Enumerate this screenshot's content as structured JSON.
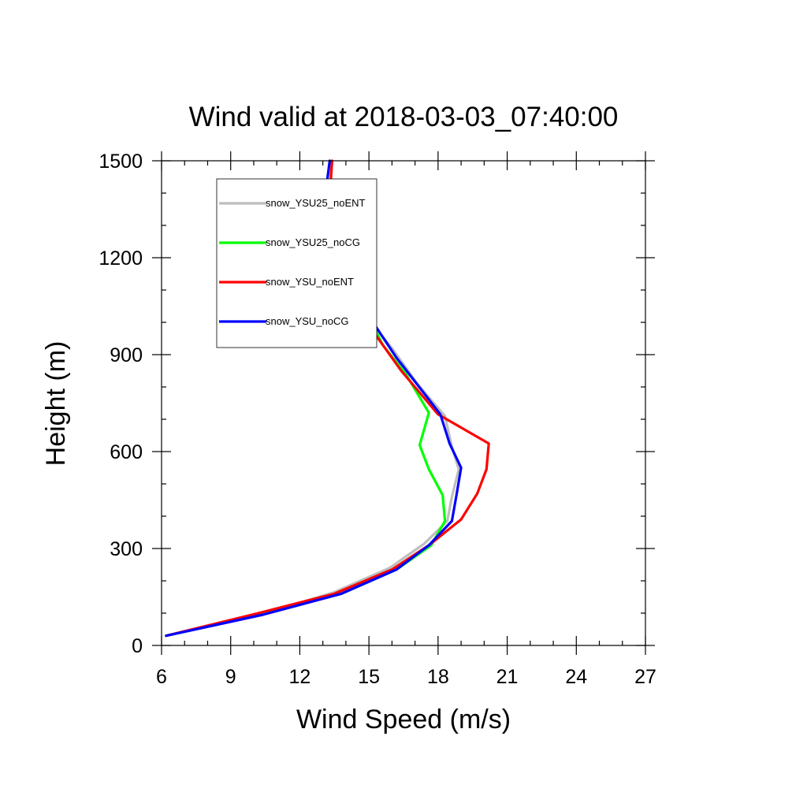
{
  "chart_data": {
    "type": "line",
    "title": "Wind valid at 2018-03-03_07:40:00",
    "xlabel": "Wind Speed (m/s)",
    "ylabel": "Height (m)",
    "xlim": [
      6,
      27
    ],
    "ylim": [
      0,
      1500
    ],
    "xticks": [
      6,
      9,
      12,
      15,
      18,
      21,
      24,
      27
    ],
    "yticks": [
      0,
      300,
      600,
      900,
      1200,
      1500
    ],
    "x_minor_step": 1,
    "y_minor_step": 100,
    "legend_position": "top-left (inside plot)",
    "grid": false,
    "series": [
      {
        "name": "snow_YSU25_noENT",
        "color": "#bebebe",
        "points": [
          [
            6.2,
            30
          ],
          [
            10.3,
            95
          ],
          [
            13.5,
            165
          ],
          [
            15.9,
            240
          ],
          [
            17.4,
            315
          ],
          [
            18.4,
            385
          ],
          [
            18.6,
            460
          ],
          [
            18.9,
            545
          ],
          [
            18.6,
            615
          ],
          [
            18.3,
            710
          ],
          [
            17.1,
            810
          ],
          [
            16.0,
            920
          ],
          [
            15.2,
            990
          ],
          [
            14.3,
            1110
          ],
          [
            13.9,
            1190
          ],
          [
            13.5,
            1290
          ],
          [
            13.4,
            1390
          ],
          [
            13.3,
            1500
          ]
        ]
      },
      {
        "name": "snow_YSU25_noCG",
        "color": "#00ff00",
        "points": [
          [
            6.2,
            30
          ],
          [
            10.3,
            95
          ],
          [
            13.8,
            160
          ],
          [
            16.2,
            235
          ],
          [
            17.7,
            310
          ],
          [
            18.3,
            385
          ],
          [
            18.2,
            465
          ],
          [
            17.6,
            545
          ],
          [
            17.2,
            620
          ],
          [
            17.6,
            720
          ],
          [
            16.6,
            840
          ],
          [
            15.6,
            930
          ],
          [
            14.7,
            1060
          ],
          [
            13.5,
            1200
          ],
          [
            13.0,
            1290
          ],
          [
            13.1,
            1390
          ],
          [
            13.3,
            1500
          ]
        ]
      },
      {
        "name": "snow_YSU_noENT",
        "color": "#ff0000",
        "points": [
          [
            6.2,
            30
          ],
          [
            10.2,
            100
          ],
          [
            13.5,
            160
          ],
          [
            16.0,
            235
          ],
          [
            17.6,
            310
          ],
          [
            19.0,
            390
          ],
          [
            19.7,
            470
          ],
          [
            20.1,
            545
          ],
          [
            20.2,
            625
          ],
          [
            18.0,
            715
          ],
          [
            16.4,
            850
          ],
          [
            15.0,
            990
          ],
          [
            13.8,
            1140
          ],
          [
            13.2,
            1200
          ],
          [
            12.9,
            1290
          ],
          [
            13.3,
            1390
          ],
          [
            13.4,
            1500
          ]
        ]
      },
      {
        "name": "snow_YSU_noCG",
        "color": "#0000ff",
        "points": [
          [
            6.2,
            30
          ],
          [
            10.4,
            95
          ],
          [
            13.8,
            160
          ],
          [
            16.2,
            235
          ],
          [
            17.6,
            310
          ],
          [
            18.6,
            385
          ],
          [
            18.8,
            465
          ],
          [
            19.0,
            550
          ],
          [
            18.5,
            625
          ],
          [
            18.1,
            715
          ],
          [
            16.2,
            890
          ],
          [
            14.9,
            1030
          ],
          [
            13.8,
            1120
          ],
          [
            12.9,
            1190
          ],
          [
            12.7,
            1290
          ],
          [
            13.1,
            1390
          ],
          [
            13.3,
            1500
          ]
        ]
      }
    ]
  }
}
